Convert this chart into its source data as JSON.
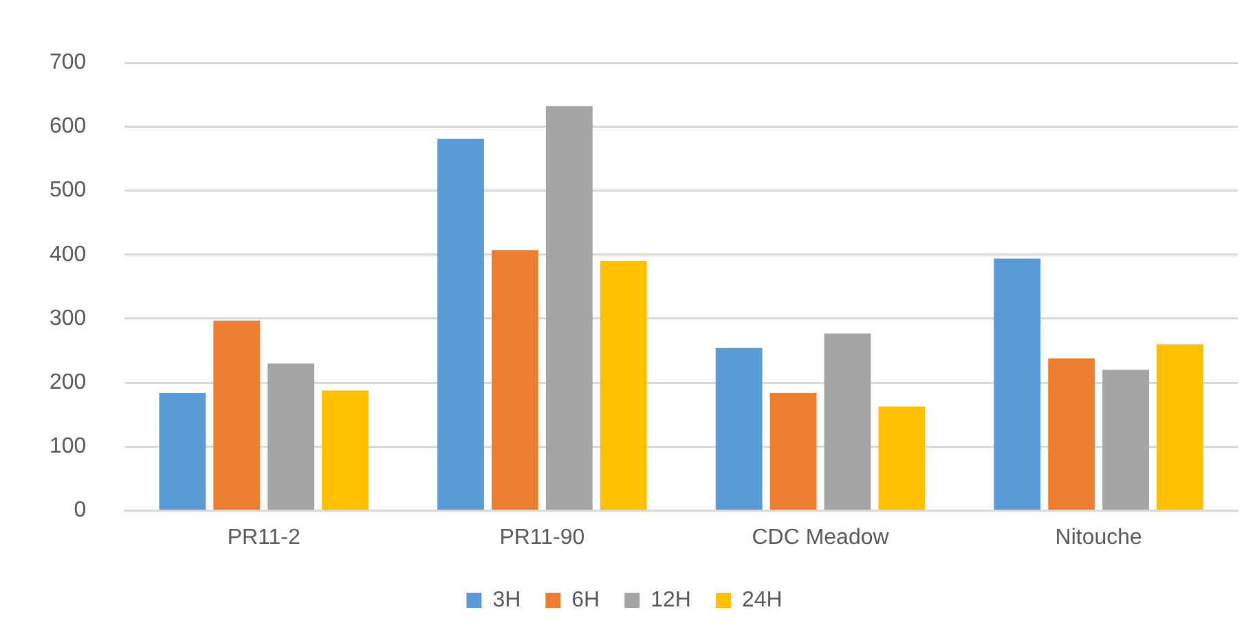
{
  "chart_data": {
    "type": "bar",
    "categories": [
      "PR11-2",
      "PR11-90",
      "CDC Meadow",
      "Nitouche"
    ],
    "series": [
      {
        "name": "3H",
        "color": "#5b9bd5",
        "values": [
          184,
          581,
          254,
          394
        ]
      },
      {
        "name": "6H",
        "color": "#ed7d31",
        "values": [
          297,
          407,
          184,
          238
        ]
      },
      {
        "name": "12H",
        "color": "#a5a5a5",
        "values": [
          230,
          632,
          277,
          220
        ]
      },
      {
        "name": "24H",
        "color": "#ffc000",
        "values": [
          188,
          390,
          163,
          260
        ]
      }
    ],
    "ylim": [
      0,
      700
    ],
    "yticks": [
      0,
      100,
      200,
      300,
      400,
      500,
      600,
      700
    ],
    "grid": "y",
    "legend": "bottom"
  }
}
